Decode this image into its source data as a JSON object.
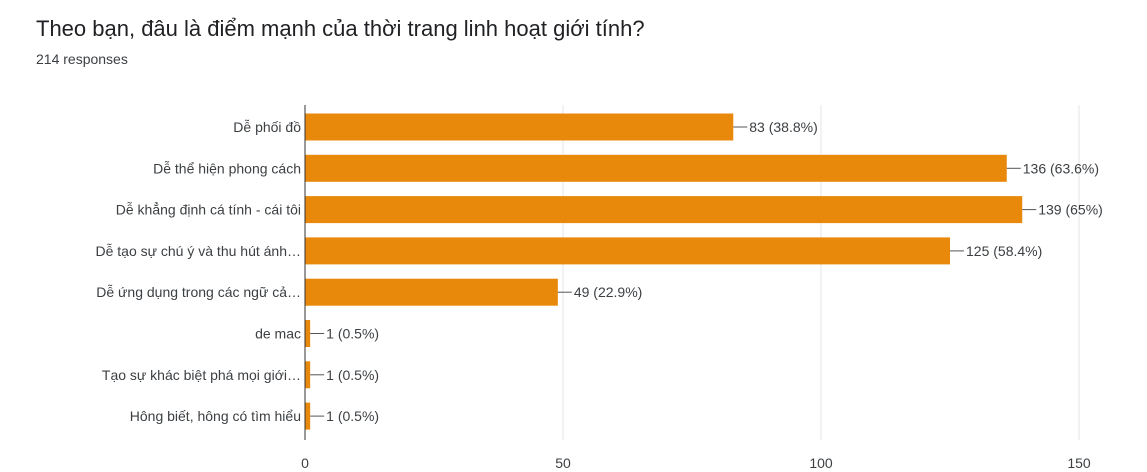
{
  "header": {
    "title": "Theo bạn, đâu là điểm mạnh của thời trang linh hoạt giới tính?",
    "responses": "214 responses"
  },
  "colors": {
    "bar": "#e8890c",
    "grid": "#e6e6e6",
    "axis": "#333333",
    "text": "#3c4043"
  },
  "chart_data": {
    "type": "bar",
    "orientation": "horizontal",
    "title": "Theo bạn, đâu là điểm mạnh của thời trang linh hoạt giới tính?",
    "categories": [
      "Dễ phối đồ",
      "Dễ thể hiện phong cách",
      "Dễ khẳng định cá tính - cái tôi",
      "Dễ tạo sự chú ý và thu hút ánh…",
      "Dễ ứng dụng trong các ngữ cả…",
      "de mac",
      "Tạo sự khác biệt phá mọi giới…",
      "Hông biết, hông có tìm hiểu"
    ],
    "values": [
      83,
      136,
      139,
      125,
      49,
      1,
      1,
      1
    ],
    "value_labels": [
      "83 (38.8%)",
      "136 (63.6%)",
      "139 (65%)",
      "125 (58.4%)",
      "49 (22.9%)",
      "1 (0.5%)",
      "1 (0.5%)",
      "1 (0.5%)"
    ],
    "xlim": [
      0,
      150
    ],
    "xticks": [
      0,
      50,
      100,
      150
    ],
    "grid": true
  }
}
